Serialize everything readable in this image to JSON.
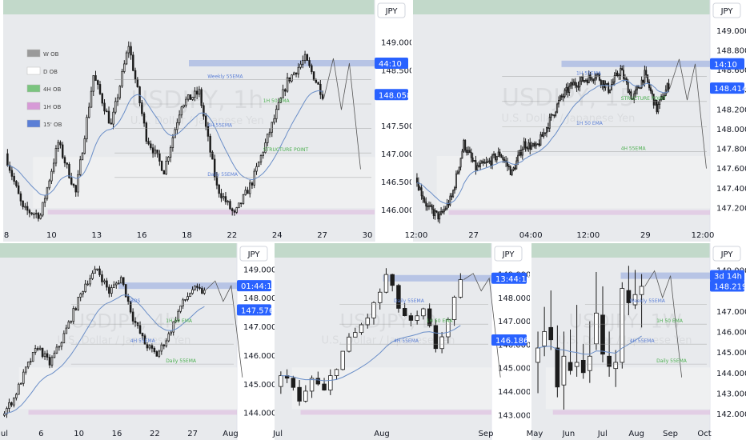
{
  "colors": {
    "up": "#1c1c1c",
    "down": "#1c1c1c",
    "ema": "#6a8ec8",
    "weekly_ob": "#c8d0cc",
    "daily_ob": "#f2f2f2",
    "ob4h": "#7bc47f",
    "ob1h": "#d79ad7",
    "ob15": "#5b7fd6",
    "blue_badge": "#2962ff",
    "bg_zone": "#d5d9de",
    "top_green": "#b8d4c0"
  },
  "chart_data": [
    {
      "type": "candlestick",
      "id": "p1",
      "currency": "JPY",
      "watermark": "USDJPY, 1h",
      "watermark_sub": "U.S. Dollar / Japanese Yen",
      "y_ticks": [
        "149.000",
        "148.500",
        "147.500",
        "147.000",
        "146.500",
        "146.000"
      ],
      "y_tick_values": [
        149.0,
        148.5,
        147.5,
        147.0,
        146.5,
        146.0
      ],
      "ylim": [
        145.7,
        149.35
      ],
      "x_ticks": [
        "8",
        "10",
        "13",
        "16",
        "18",
        "22",
        "24",
        "27",
        "30"
      ],
      "current_label": "148.058",
      "current_value": 148.058,
      "countdown_label": "44:10",
      "countdown_value": 148.62,
      "legend": [
        {
          "label": "W OB",
          "color": "#9a9a9a"
        },
        {
          "label": "D OB",
          "color": "#ffffff"
        },
        {
          "label": "4H OB",
          "color": "#7bc47f"
        },
        {
          "label": "1H OB",
          "color": "#d79ad7"
        },
        {
          "label": "15' OB",
          "color": "#5b7fd6"
        }
      ],
      "annotations": [
        "Weekly 55EMA",
        "1H 50 EMA",
        "4H 55EMA",
        "STRUCTURE POINT",
        "Daily 55EMA"
      ],
      "path_key": [
        147.0,
        146.0,
        145.9,
        147.2,
        146.3,
        148.4,
        147.5,
        148.95,
        147.3,
        146.7,
        147.9,
        148.1,
        146.4,
        145.9,
        146.5,
        147.4,
        148.3,
        148.7,
        148.06
      ]
    },
    {
      "type": "candlestick",
      "id": "p2",
      "currency": "JPY",
      "watermark": "USDJPY, 15",
      "watermark_sub": "U.S. Dollar / Japanese Yen",
      "y_ticks": [
        "149.000",
        "148.800",
        "148.600",
        "148.400",
        "148.200",
        "148.000",
        "147.800",
        "147.600",
        "147.400",
        "147.200"
      ],
      "y_tick_values": [
        149.0,
        148.8,
        148.6,
        148.4,
        148.2,
        148.0,
        147.8,
        147.6,
        147.4,
        147.2
      ],
      "ylim": [
        147.0,
        149.13
      ],
      "x_ticks": [
        "12:00",
        "27",
        "04:00",
        "12:00",
        "29",
        "12:00"
      ],
      "current_label": "148.414",
      "current_value": 148.414,
      "countdown_label": "14:10",
      "countdown_value": 148.66,
      "annotations": [
        "1H 55EMA",
        "STRUCTURE POINT",
        "1H 50 EMA",
        "4H 55EMA"
      ],
      "path_key": [
        147.5,
        147.2,
        147.1,
        147.3,
        147.85,
        147.6,
        147.65,
        147.75,
        147.55,
        147.85,
        147.8,
        148.05,
        148.3,
        148.45,
        148.5,
        148.55,
        148.4,
        148.6,
        148.3,
        148.55,
        148.2,
        148.45
      ]
    },
    {
      "type": "candlestick",
      "id": "p3",
      "currency": "JPY",
      "watermark": "USDJPY, 4h",
      "watermark_sub": "U.S. Dollar / Japanese Yen",
      "y_ticks": [
        "149.000",
        "148.000",
        "147.000",
        "146.000",
        "145.000",
        "144.000"
      ],
      "y_tick_values": [
        149.0,
        148.0,
        147.0,
        146.0,
        145.0,
        144.0
      ],
      "ylim": [
        143.6,
        149.4
      ],
      "x_ticks": [
        "Jul",
        "6",
        "10",
        "16",
        "22",
        "27",
        "Aug"
      ],
      "current_label": "147.576",
      "current_value": 147.576,
      "countdown_label": "01:44:10",
      "countdown_value": 148.42,
      "annotations": [
        "BOS",
        "1H 50 EMA",
        "4H 55EMA",
        "Daily 55EMA"
      ],
      "path_key": [
        143.9,
        144.5,
        145.5,
        146.3,
        145.7,
        146.5,
        147.5,
        148.5,
        149.0,
        148.2,
        148.7,
        147.3,
        146.4,
        146.0,
        146.7,
        147.7,
        148.3,
        148.2
      ]
    },
    {
      "type": "candlestick",
      "id": "p4",
      "currency": "JPY",
      "watermark": "USDJPY, D",
      "watermark_sub": "U.S. Dollar / Japanese Yen",
      "y_ticks": [
        "149.000",
        "148.000",
        "147.000",
        "146.000",
        "145.000",
        "144.000",
        "143.000"
      ],
      "y_tick_values": [
        149.0,
        148.0,
        147.0,
        146.0,
        145.0,
        144.0,
        143.0
      ],
      "ylim": [
        142.6,
        149.7
      ],
      "x_ticks": [
        "Jul",
        "Aug",
        "Sep"
      ],
      "current_label": "146.186",
      "current_value": 146.186,
      "countdown_label": "13:44:10",
      "countdown_value": 148.82,
      "annotations": [
        "Daily 55EMA",
        "1H 50 EMA",
        "4H 55EMA"
      ],
      "path_key": [
        144.2,
        144.8,
        143.4,
        144.5,
        143.9,
        145.2,
        146.1,
        146.8,
        147.6,
        148.9,
        147.6,
        146.8,
        147.3,
        145.9,
        147.0,
        148.5
      ]
    },
    {
      "type": "candlestick",
      "id": "p5",
      "currency": "JPY",
      "watermark": "USDJPY, 1W",
      "watermark_sub": "U.S. Dollar / Japanese Yen",
      "y_ticks": [
        "149.000",
        "147.000",
        "146.000",
        "145.000",
        "144.000",
        "143.000",
        "142.000"
      ],
      "y_tick_values": [
        149.0,
        147.0,
        146.0,
        145.0,
        144.0,
        143.0,
        142.0
      ],
      "ylim": [
        141.5,
        149.6
      ],
      "x_ticks": [
        "May",
        "Jun",
        "Jul",
        "Aug",
        "Sep",
        "Oct"
      ],
      "current_label": "148.219",
      "current_value": 148.219,
      "countdown_label": "3d 14h",
      "countdown_value": 148.72,
      "annotations": [
        "Weekly 55EMA",
        "1H 50 EMA",
        "4H 55EMA",
        "Daily 55EMA"
      ],
      "candles": [
        {
          "o": 144.5,
          "h": 146.0,
          "l": 143.0,
          "c": 145.2
        },
        {
          "o": 145.3,
          "h": 147.2,
          "l": 144.8,
          "c": 146.0
        },
        {
          "o": 146.2,
          "h": 148.0,
          "l": 145.1,
          "c": 145.6
        },
        {
          "o": 145.2,
          "h": 146.3,
          "l": 142.8,
          "c": 143.3
        },
        {
          "o": 143.4,
          "h": 146.0,
          "l": 142.2,
          "c": 144.8
        },
        {
          "o": 144.5,
          "h": 146.1,
          "l": 143.9,
          "c": 144.1
        },
        {
          "o": 144.3,
          "h": 147.3,
          "l": 143.8,
          "c": 144.5
        },
        {
          "o": 144.6,
          "h": 145.4,
          "l": 143.7,
          "c": 144.0
        },
        {
          "o": 144.1,
          "h": 146.5,
          "l": 143.5,
          "c": 144.8
        },
        {
          "o": 145.4,
          "h": 148.9,
          "l": 145.1,
          "c": 146.9
        },
        {
          "o": 146.8,
          "h": 148.2,
          "l": 144.5,
          "c": 144.9
        },
        {
          "o": 144.8,
          "h": 146.0,
          "l": 143.8,
          "c": 144.3
        },
        {
          "o": 144.2,
          "h": 145.1,
          "l": 143.3,
          "c": 144.5
        },
        {
          "o": 144.5,
          "h": 148.4,
          "l": 144.2,
          "c": 148.1
        },
        {
          "o": 148.0,
          "h": 149.2,
          "l": 146.8,
          "c": 147.4
        },
        {
          "o": 147.3,
          "h": 149.0,
          "l": 147.1,
          "c": 147.8
        },
        {
          "o": 147.8,
          "h": 148.8,
          "l": 146.2,
          "c": 148.2
        }
      ]
    }
  ]
}
